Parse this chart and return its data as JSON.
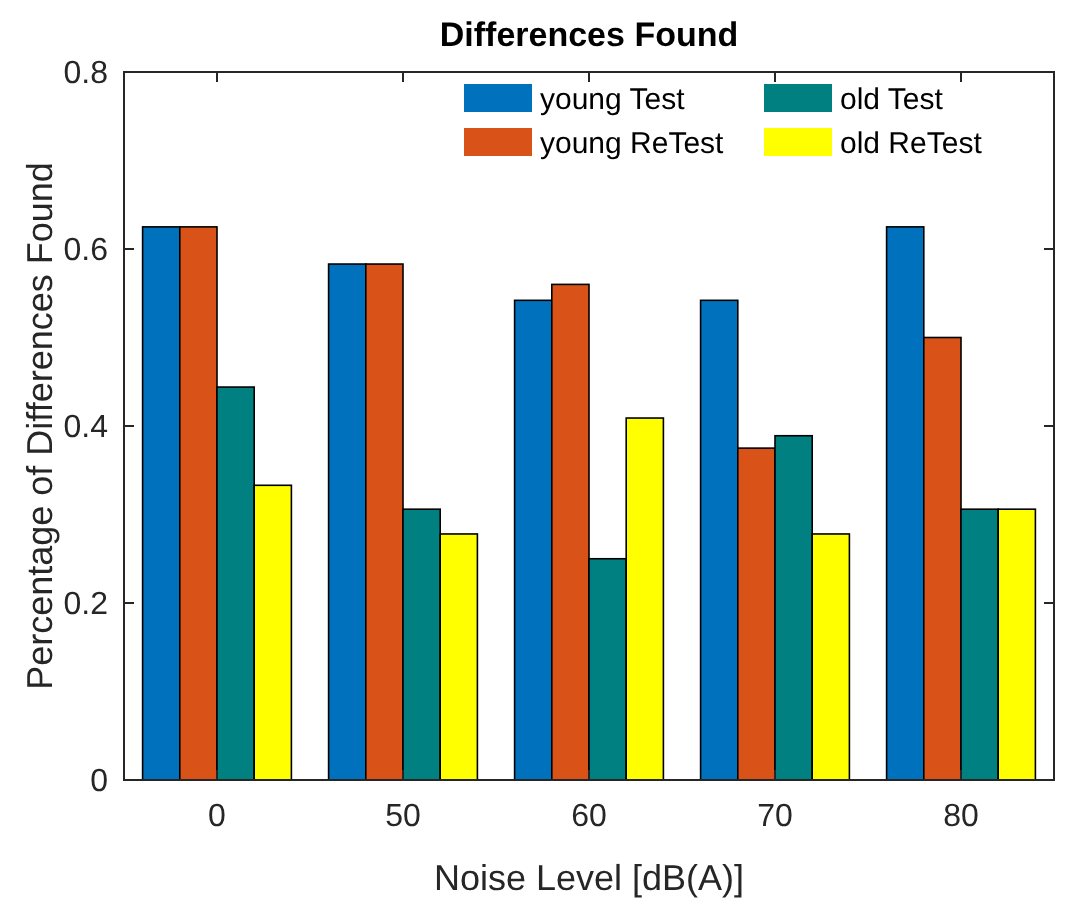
{
  "chart_data": {
    "type": "bar",
    "title": "Differences Found",
    "xlabel": "Noise Level [dB(A)]",
    "ylabel": "Percentage of Differences Found",
    "categories": [
      "0",
      "50",
      "60",
      "70",
      "80"
    ],
    "series": [
      {
        "name": "young Test",
        "color": "#0072bd",
        "values": [
          0.625,
          0.583,
          0.542,
          0.542,
          0.625
        ]
      },
      {
        "name": "young ReTest",
        "color": "#d95319",
        "values": [
          0.625,
          0.583,
          0.56,
          0.375,
          0.5
        ]
      },
      {
        "name": "old Test",
        "color": "#008080",
        "values": [
          0.444,
          0.306,
          0.25,
          0.389,
          0.306
        ]
      },
      {
        "name": "old ReTest",
        "color": "#ffff00",
        "values": [
          0.333,
          0.278,
          0.409,
          0.278,
          0.306
        ]
      }
    ],
    "ylim": [
      0,
      0.8
    ],
    "yticks": [
      0,
      0.2,
      0.4,
      0.6,
      0.8
    ],
    "grid": false,
    "legend": "top right"
  }
}
